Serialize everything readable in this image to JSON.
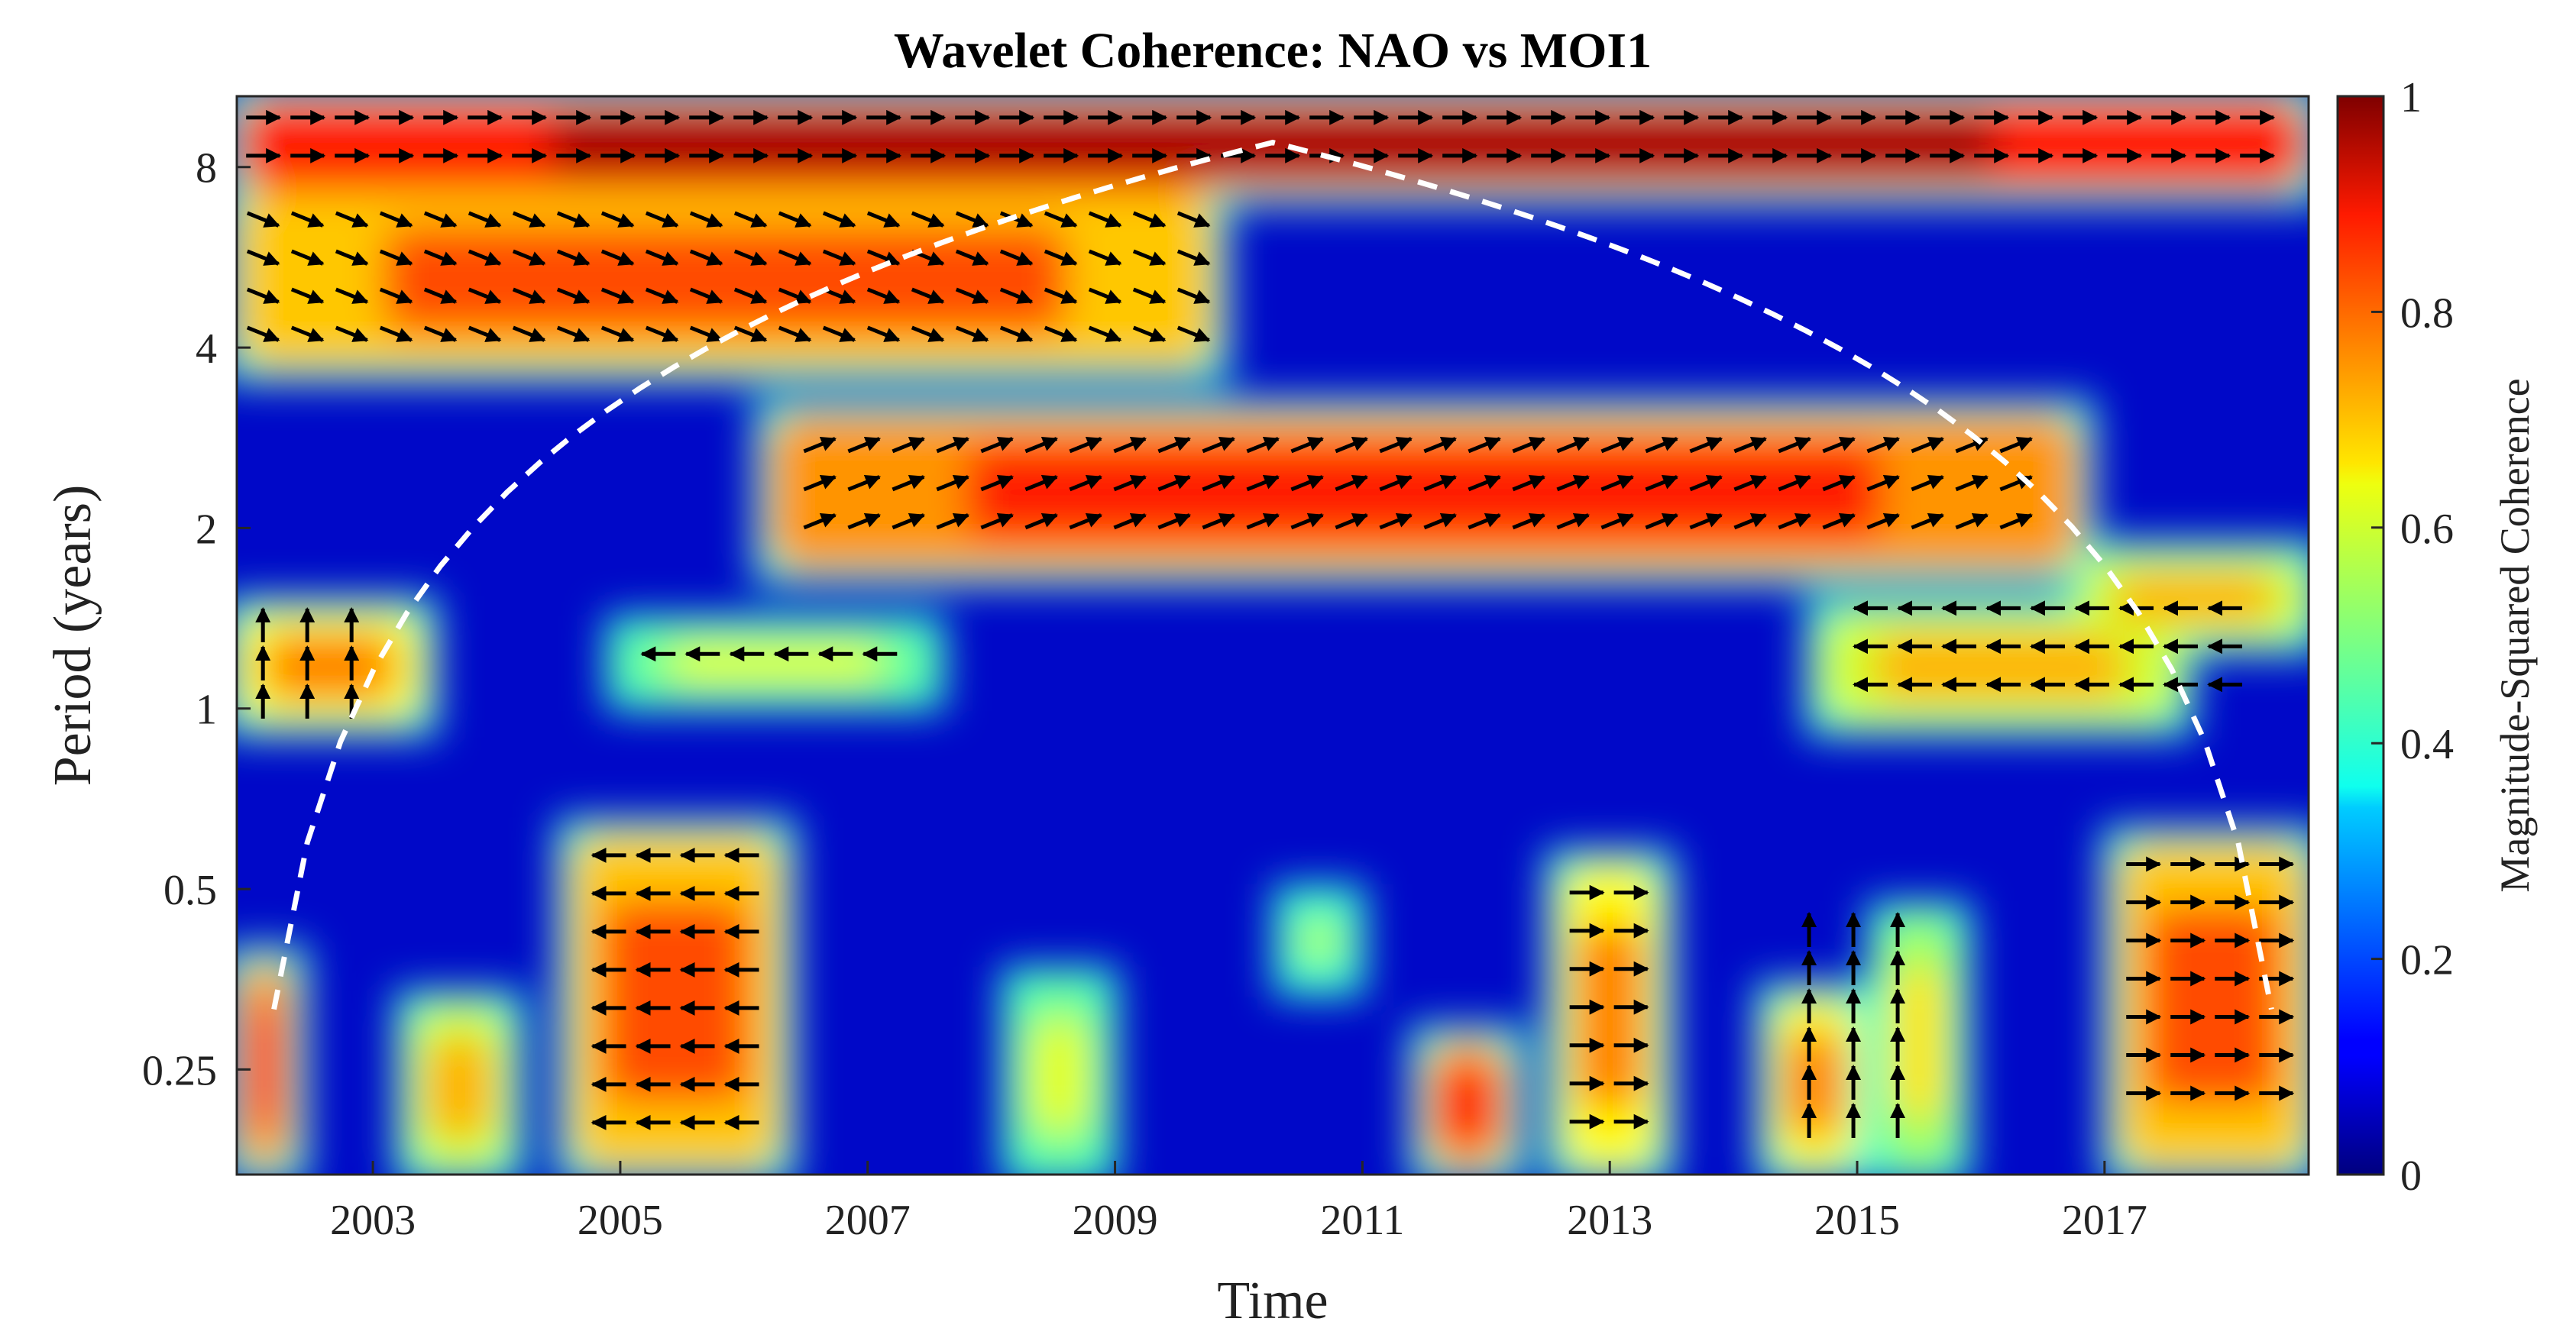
{
  "chart_data": {
    "type": "heatmap",
    "title": "Wavelet Coherence: NAO vs MOI1",
    "xlabel": "Time",
    "ylabel": "Period (years)",
    "colorbar_label": "Magnitude-Squared Coherence",
    "x_range": [
      2001.9,
      2018.65
    ],
    "x_ticks": [
      {
        "value": 2003,
        "label": "2003"
      },
      {
        "value": 2005,
        "label": "2005"
      },
      {
        "value": 2007,
        "label": "2007"
      },
      {
        "value": 2009,
        "label": "2009"
      },
      {
        "value": 2011,
        "label": "2011"
      },
      {
        "value": 2013,
        "label": "2013"
      },
      {
        "value": 2015,
        "label": "2015"
      },
      {
        "value": 2017,
        "label": "2017"
      }
    ],
    "y_scale": "log2",
    "y_range": [
      0.167,
      10.5
    ],
    "y_ticks": [
      {
        "value": 0.25,
        "label": "0.25"
      },
      {
        "value": 0.5,
        "label": "0.5"
      },
      {
        "value": 1,
        "label": "1"
      },
      {
        "value": 2,
        "label": "2"
      },
      {
        "value": 4,
        "label": "4"
      },
      {
        "value": 8,
        "label": "8"
      }
    ],
    "colorbar_range": [
      0,
      1
    ],
    "colorbar_ticks": [
      {
        "value": 0,
        "label": "0"
      },
      {
        "value": 0.2,
        "label": "0.2"
      },
      {
        "value": 0.4,
        "label": "0.4"
      },
      {
        "value": 0.6,
        "label": "0.6"
      },
      {
        "value": 0.8,
        "label": "0.8"
      },
      {
        "value": 1,
        "label": "1"
      }
    ],
    "colormap": "jet",
    "cone_of_influence": "white dashed",
    "coherent_regions": [
      {
        "t": [
          2001.9,
          2018.65
        ],
        "p": [
          7.3,
          10.5
        ],
        "level": 0.97
      },
      {
        "t": [
          2001.9,
          2009.8
        ],
        "p": [
          3.7,
          7.3
        ],
        "level": 0.8
      },
      {
        "t": [
          2006.2,
          2016.8
        ],
        "p": [
          1.7,
          3.1
        ],
        "level": 0.85
      },
      {
        "t": [
          2001.9,
          2003.4
        ],
        "p": [
          0.95,
          1.45
        ],
        "level": 0.75
      },
      {
        "t": [
          2005.0,
          2007.5
        ],
        "p": [
          1.05,
          1.35
        ],
        "level": 0.6
      },
      {
        "t": [
          2014.7,
          2017.6
        ],
        "p": [
          0.95,
          1.45
        ],
        "level": 0.7
      },
      {
        "t": [
          2016.8,
          2018.65
        ],
        "p": [
          1.3,
          1.8
        ],
        "level": 0.7
      },
      {
        "t": [
          2004.6,
          2006.3
        ],
        "p": [
          0.17,
          0.62
        ],
        "level": 0.8
      },
      {
        "t": [
          2001.9,
          2002.35
        ],
        "p": [
          0.17,
          0.38
        ],
        "level": 0.85
      },
      {
        "t": [
          2003.3,
          2004.1
        ],
        "p": [
          0.17,
          0.32
        ],
        "level": 0.7
      },
      {
        "t": [
          2008.2,
          2008.9
        ],
        "p": [
          0.17,
          0.35
        ],
        "level": 0.6
      },
      {
        "t": [
          2010.4,
          2010.9
        ],
        "p": [
          0.35,
          0.48
        ],
        "level": 0.55
      },
      {
        "t": [
          2011.5,
          2012.2
        ],
        "p": [
          0.17,
          0.28
        ],
        "level": 0.85
      },
      {
        "t": [
          2012.6,
          2013.4
        ],
        "p": [
          0.17,
          0.55
        ],
        "level": 0.75
      },
      {
        "t": [
          2014.3,
          2015.0
        ],
        "p": [
          0.17,
          0.33
        ],
        "level": 0.75
      },
      {
        "t": [
          2015.2,
          2015.8
        ],
        "p": [
          0.17,
          0.45
        ],
        "level": 0.65
      },
      {
        "t": [
          2017.1,
          2018.65
        ],
        "p": [
          0.17,
          0.6
        ],
        "level": 0.8
      }
    ],
    "phase_arrows": [
      {
        "t": [
          2002.0,
          2018.4
        ],
        "p": [
          8.0,
          10.2
        ],
        "dir": "right"
      },
      {
        "t": [
          2002.0,
          2010.0
        ],
        "p": [
          4.1,
          6.9
        ],
        "dir": "down-right"
      },
      {
        "t": [
          2006.5,
          2016.5
        ],
        "p": [
          1.85,
          2.9
        ],
        "dir": "up-right"
      },
      {
        "t": [
          2002.0,
          2003.1
        ],
        "p": [
          1.0,
          1.45
        ],
        "dir": "up"
      },
      {
        "t": [
          2005.2,
          2007.3
        ],
        "p": [
          1.1,
          1.3
        ],
        "dir": "left"
      },
      {
        "t": [
          2015.0,
          2018.3
        ],
        "p": [
          1.0,
          1.55
        ],
        "dir": "left"
      },
      {
        "t": [
          2004.8,
          2006.4
        ],
        "p": [
          0.2,
          0.6
        ],
        "dir": "left"
      },
      {
        "t": [
          2017.2,
          2018.5
        ],
        "p": [
          0.2,
          0.58
        ],
        "dir": "right"
      },
      {
        "t": [
          2012.7,
          2013.4
        ],
        "p": [
          0.2,
          0.52
        ],
        "dir": "right"
      },
      {
        "t": [
          2014.5,
          2015.7
        ],
        "p": [
          0.2,
          0.45
        ],
        "dir": "up"
      }
    ]
  }
}
